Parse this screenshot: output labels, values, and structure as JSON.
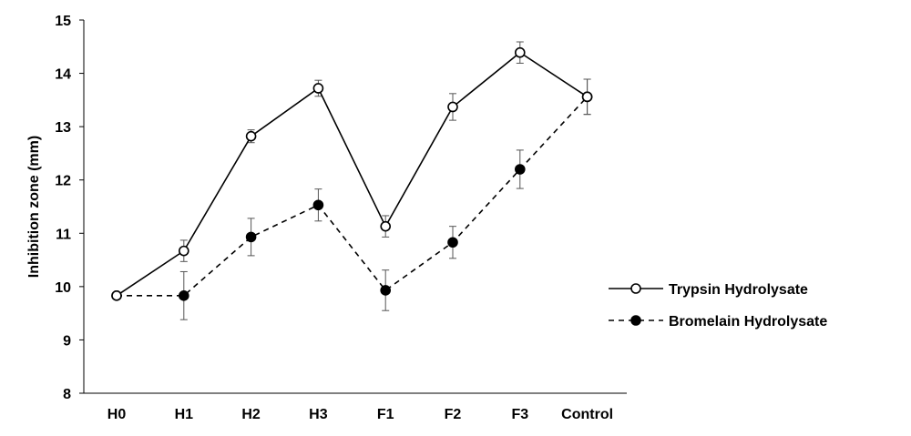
{
  "chart_data": {
    "type": "line",
    "title": "",
    "xlabel": "",
    "ylabel": "Inhibition zone (mm)",
    "ylim": [
      8,
      15
    ],
    "yticks": [
      8,
      9,
      10,
      11,
      12,
      13,
      14,
      15
    ],
    "grid": false,
    "legend_position": "right",
    "categories": [
      "H0",
      "H1",
      "H2",
      "H3",
      "F1",
      "F2",
      "F3",
      "Control"
    ],
    "series": [
      {
        "name": "Trypsin Hydrolysate",
        "marker": "open-circle",
        "line_style": "solid",
        "color": "#000000",
        "values": [
          9.83,
          10.67,
          12.82,
          13.72,
          11.13,
          13.37,
          14.39,
          13.56
        ],
        "errors": [
          0.0,
          0.2,
          0.12,
          0.15,
          0.2,
          0.25,
          0.2,
          0.33
        ]
      },
      {
        "name": "Bromelain Hydrolysate",
        "marker": "filled-circle",
        "line_style": "dashed",
        "color": "#000000",
        "values": [
          9.83,
          9.83,
          10.93,
          11.53,
          9.93,
          10.83,
          12.2,
          13.56
        ],
        "errors": [
          0.0,
          0.45,
          0.35,
          0.3,
          0.38,
          0.3,
          0.36,
          0.33
        ]
      }
    ]
  }
}
